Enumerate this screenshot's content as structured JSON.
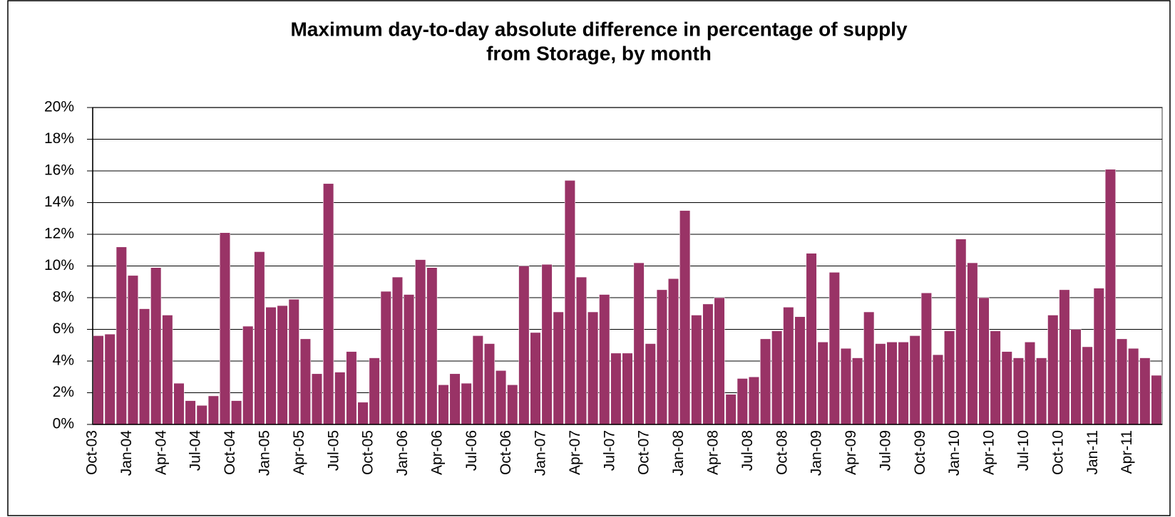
{
  "chart_data": {
    "type": "bar",
    "title": [
      "Maximum day-to-day absolute difference in percentage of supply",
      "from Storage, by month"
    ],
    "categories": [
      "Oct-03",
      null,
      null,
      "Jan-04",
      null,
      null,
      "Apr-04",
      null,
      null,
      "Jul-04",
      null,
      null,
      "Oct-04",
      null,
      null,
      "Jan-05",
      null,
      null,
      "Apr-05",
      null,
      null,
      "Jul-05",
      null,
      null,
      "Oct-05",
      null,
      null,
      "Jan-06",
      null,
      null,
      "Apr-06",
      null,
      null,
      "Jul-06",
      null,
      null,
      "Oct-06",
      null,
      null,
      "Jan-07",
      null,
      null,
      "Apr-07",
      null,
      null,
      "Jul-07",
      null,
      null,
      "Oct-07",
      null,
      null,
      "Jan-08",
      null,
      null,
      "Apr-08",
      null,
      null,
      "Jul-08",
      null,
      null,
      "Oct-08",
      null,
      null,
      "Jan-09",
      null,
      null,
      "Apr-09",
      null,
      null,
      "Jul-09",
      null,
      null,
      "Oct-09",
      null,
      null,
      "Jan-10",
      null,
      null,
      "Apr-10",
      null,
      null,
      "Jul-10",
      null,
      null,
      "Oct-10",
      null,
      null,
      "Jan-11",
      null,
      null,
      "Apr-11",
      null,
      null
    ],
    "values": [
      5.6,
      5.7,
      11.2,
      9.4,
      7.3,
      9.9,
      6.9,
      2.6,
      1.5,
      1.2,
      1.8,
      12.1,
      1.5,
      6.2,
      10.9,
      7.4,
      7.5,
      7.9,
      5.4,
      3.2,
      15.2,
      3.3,
      4.6,
      1.4,
      4.2,
      8.4,
      9.3,
      8.2,
      10.4,
      9.9,
      2.5,
      3.2,
      2.6,
      5.6,
      5.1,
      3.4,
      2.5,
      10.0,
      5.8,
      10.1,
      7.1,
      15.4,
      9.3,
      7.1,
      8.2,
      4.5,
      4.5,
      10.2,
      5.1,
      8.5,
      9.2,
      13.5,
      6.9,
      7.6,
      8.0,
      1.9,
      2.9,
      3.0,
      5.4,
      5.9,
      7.4,
      6.8,
      10.8,
      5.2,
      9.6,
      4.8,
      4.2,
      7.1,
      5.1,
      5.2,
      5.2,
      5.6,
      8.3,
      4.4,
      5.9,
      11.7,
      10.2,
      8.0,
      5.9,
      4.6,
      4.2,
      5.2,
      4.2,
      6.9,
      8.5,
      6.0,
      4.9,
      8.6,
      16.1,
      5.4,
      4.8,
      4.2,
      3.1
    ],
    "color": "#993366",
    "ylim": [
      0,
      20
    ],
    "yticks": [
      {
        "value": 0,
        "label": "0%"
      },
      {
        "value": 2,
        "label": "2%"
      },
      {
        "value": 4,
        "label": "4%"
      },
      {
        "value": 6,
        "label": "6%"
      },
      {
        "value": 8,
        "label": "8%"
      },
      {
        "value": 10,
        "label": "10%"
      },
      {
        "value": 12,
        "label": "12%"
      },
      {
        "value": 14,
        "label": "14%"
      },
      {
        "value": 16,
        "label": "16%"
      },
      {
        "value": 18,
        "label": "18%"
      },
      {
        "value": 20,
        "label": "20%"
      }
    ],
    "grid": true
  }
}
